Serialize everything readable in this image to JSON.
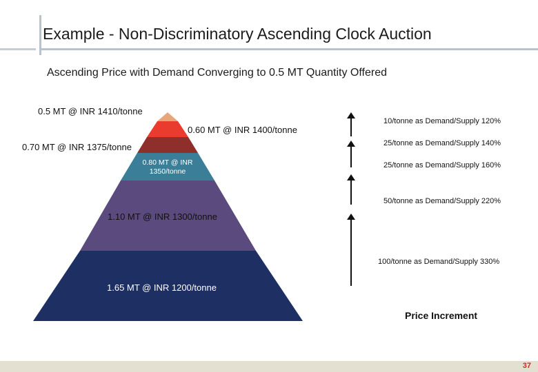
{
  "slide": {
    "title": "Example - Non-Discriminatory Ascending Clock Auction",
    "subtitle": "Ascending Price with Demand Converging to 0.5 MT Quantity Offered",
    "page_number": "37"
  },
  "pyramid": {
    "tiers": [
      {
        "label": "0.5 MT @ INR 1410/tonne",
        "color": "#e9a57a"
      },
      {
        "label": "0.60 MT @ INR 1400/tonne",
        "color": "#ea3b2f"
      },
      {
        "label": "0.70 MT @ INR 1375/tonne",
        "color": "#8e2f2b"
      },
      {
        "label": "0.80 MT @ INR 1350/tonne",
        "color": "#3a7f97"
      },
      {
        "label": "1.10 MT @ INR 1300/tonne",
        "color": "#5b4a7e"
      },
      {
        "label": "1.65 MT @ INR 1200/tonne",
        "color": "#1d2f63"
      }
    ]
  },
  "increments": {
    "items": [
      "10/tonne as Demand/Supply 120%",
      "25/tonne as Demand/Supply 140%",
      "25/tonne as Demand/Supply 160%",
      "50/tonne as Demand/Supply 220%",
      "100/tonne as Demand/Supply 330%"
    ],
    "title": "Price Increment"
  }
}
